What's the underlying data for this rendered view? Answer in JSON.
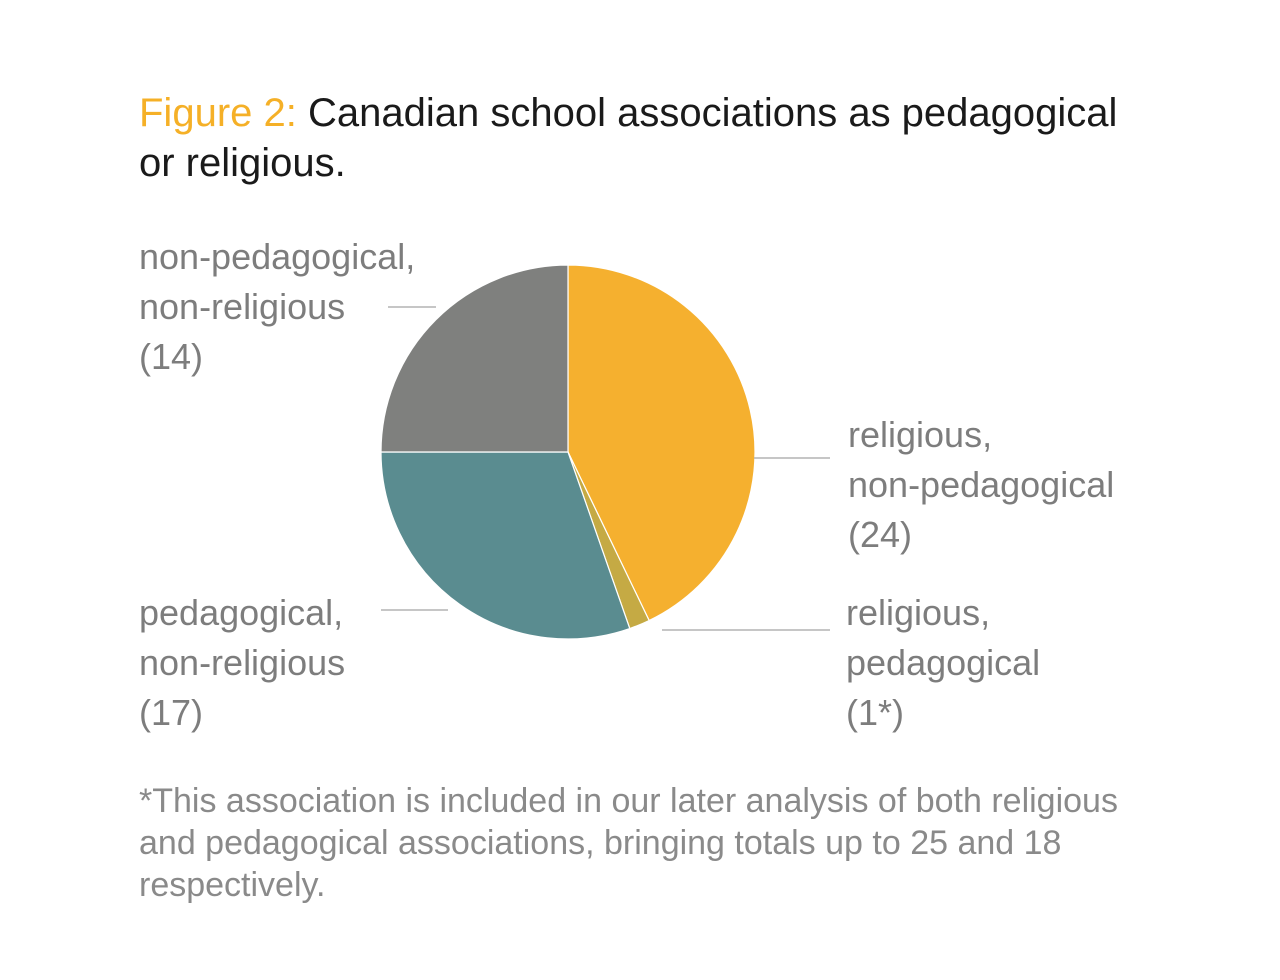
{
  "title": {
    "figure_label": "Figure 2:",
    "text": "Canadian school associations as pedagogical or religious."
  },
  "labels": {
    "nonped": {
      "line1": "non-pedagogical,",
      "line2": "non-religious",
      "count": "(14)"
    },
    "relig": {
      "line1": "religious,",
      "line2": "non-pedagogical",
      "count": "(24)"
    },
    "ped": {
      "line1": "pedagogical,",
      "line2": "non-religious",
      "count": "(17)"
    },
    "both": {
      "line1": "religious,",
      "line2": "pedagogical",
      "count": "(1*)"
    }
  },
  "footnote": "*This association is included in our later analysis of both religious and pedagogical associations, bringing totals up to 25 and 18 respectively.",
  "colors": {
    "title_accent": "#f5b027",
    "title_text": "#1a1a1a",
    "label_text": "#7d7d7d",
    "leader_line": "#b3b3b3"
  },
  "chart_data": {
    "type": "pie",
    "title": "Canadian school associations as pedagogical or religious.",
    "start_angle_deg": 0,
    "direction": "clockwise",
    "slices": [
      {
        "key": "relig",
        "label": "religious, non-pedagogical",
        "value": 24,
        "color": "#f5b02f"
      },
      {
        "key": "both",
        "label": "religious, pedagogical",
        "value": 1,
        "color": "#c5aa44"
      },
      {
        "key": "ped",
        "label": "pedagogical, non-religious",
        "value": 17,
        "color": "#5a8c90"
      },
      {
        "key": "nonped",
        "label": "non-pedagogical, non-religious",
        "value": 14,
        "color": "#7f807e"
      }
    ]
  }
}
